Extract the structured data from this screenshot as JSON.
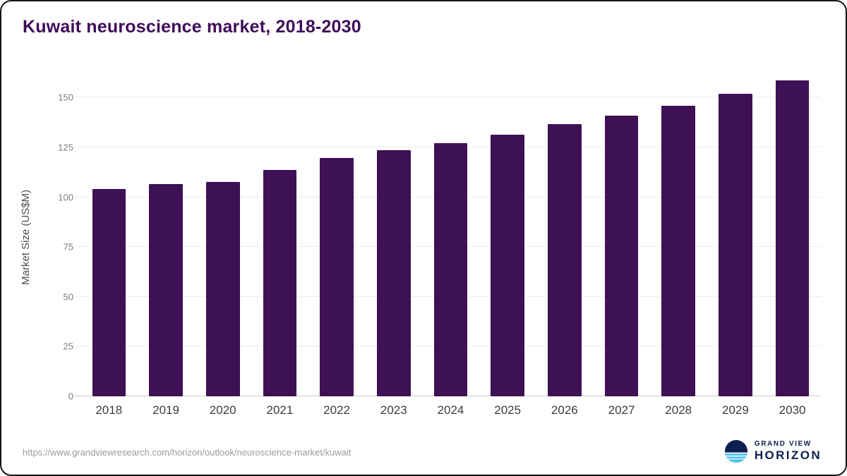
{
  "chart_data": {
    "type": "bar",
    "title": "Kuwait neuroscience market, 2018-2030",
    "xlabel": "",
    "ylabel": "Market Size (US$M)",
    "categories": [
      "2018",
      "2019",
      "2020",
      "2021",
      "2022",
      "2023",
      "2024",
      "2025",
      "2026",
      "2027",
      "2028",
      "2029",
      "2030"
    ],
    "values": [
      104,
      106.5,
      107.5,
      113.5,
      119.5,
      123.5,
      127,
      131.5,
      136.5,
      141,
      146,
      152,
      158.5
    ],
    "ylim": [
      0,
      160
    ],
    "yticks": [
      0,
      25,
      50,
      75,
      100,
      125,
      150
    ],
    "grid": "horizontal",
    "legend": "none",
    "bar_color": "#3e1155"
  },
  "footer": {
    "source": "https://www.grandviewresearch.com/horizon/outlook/neuroscience-market/kuwait",
    "logo_top": "GRAND VIEW",
    "logo_bottom": "HORIZON"
  },
  "colors": {
    "bar": "#3e1155",
    "title": "#3f0d5a",
    "logo_navy": "#0d1f4e",
    "logo_blue": "#4cc5f0",
    "gridline": "#ececec"
  }
}
